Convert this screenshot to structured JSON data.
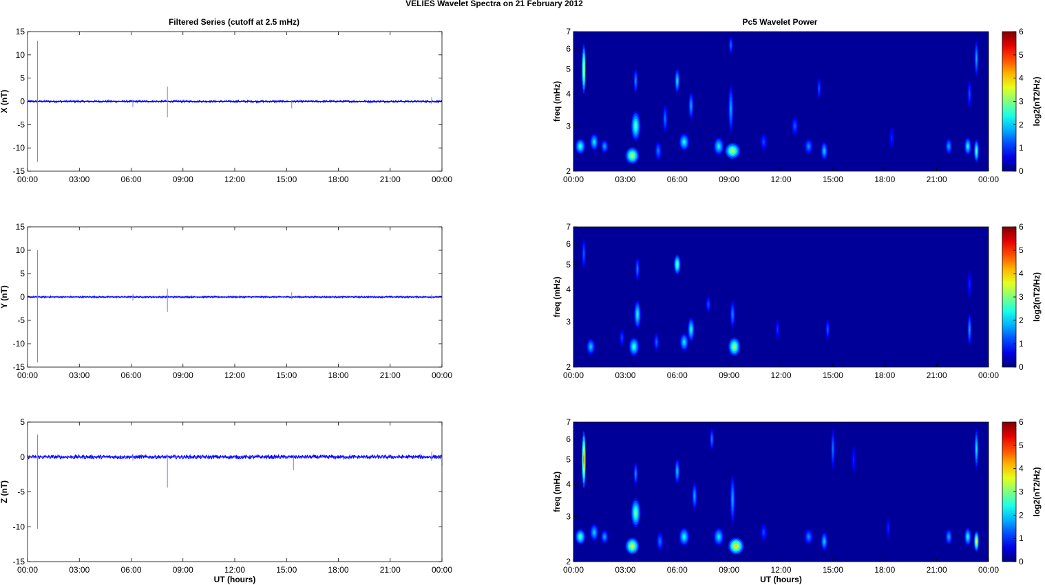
{
  "figure_title": "VELIES Wavelet Spectra on 21 February  2012",
  "left_title": "Filtered Series (cutoff at 2.5 mHz)",
  "right_title": "Pc5 Wavelet Power",
  "x_label": "UT (hours)",
  "time_ticks": [
    "00:00",
    "03:00",
    "06:00",
    "09:00",
    "12:00",
    "15:00",
    "18:00",
    "21:00",
    "00:00"
  ],
  "freq_label": "freq (mHz)",
  "colorbar_label": "log2(nT2/Hz)",
  "colorbar_ticks": [
    "0",
    "1",
    "2",
    "3",
    "4",
    "5",
    "6"
  ],
  "colors": {
    "series": "#0000ff",
    "spectrogram_background": "#00008f"
  },
  "chart_data": [
    {
      "type": "line",
      "title": "Filtered Series (cutoff at 2.5 mHz)",
      "component": "X",
      "ylabel": "X (nT)",
      "xlim_hours": [
        0,
        24
      ],
      "ylim": [
        -15,
        15
      ],
      "yticks": [
        "15",
        "10",
        "5",
        "0",
        "-5",
        "-10",
        "-15"
      ],
      "spikes": [
        {
          "t": 0.58,
          "min": -13,
          "max": 13
        },
        {
          "t": 6.1,
          "min": -1.2,
          "max": 0.4
        },
        {
          "t": 8.1,
          "min": -3.4,
          "max": 3.2
        },
        {
          "t": 15.3,
          "min": -1.5,
          "max": 0.3
        },
        {
          "t": 23.4,
          "min": -0.6,
          "max": 0.9
        }
      ],
      "noise_amplitude": 0.25
    },
    {
      "type": "line",
      "component": "Y",
      "ylabel": "Y (nT)",
      "xlim_hours": [
        0,
        24
      ],
      "ylim": [
        -15,
        15
      ],
      "yticks": [
        "15",
        "10",
        "5",
        "0",
        "-5",
        "-10",
        "-15"
      ],
      "spikes": [
        {
          "t": 0.58,
          "min": -14,
          "max": 10
        },
        {
          "t": 6.1,
          "min": -0.8,
          "max": 0.6
        },
        {
          "t": 8.1,
          "min": -3.2,
          "max": 1.8
        },
        {
          "t": 15.3,
          "min": -0.5,
          "max": 1.0
        },
        {
          "t": 23.4,
          "min": -0.4,
          "max": 0.5
        }
      ],
      "noise_amplitude": 0.2
    },
    {
      "type": "line",
      "component": "Z",
      "ylabel": "Z (nT)",
      "xlim_hours": [
        0,
        24
      ],
      "ylim": [
        -15,
        5
      ],
      "yticks": [
        "5",
        "0",
        "-5",
        "-10",
        "-15"
      ],
      "spikes": [
        {
          "t": 0.58,
          "min": -10.3,
          "max": 3.2
        },
        {
          "t": 6.1,
          "min": -0.5,
          "max": 0.4
        },
        {
          "t": 8.1,
          "min": -4.4,
          "max": 0.3
        },
        {
          "t": 15.4,
          "min": -1.9,
          "max": 0.3
        },
        {
          "t": 23.4,
          "min": -0.6,
          "max": 0.7
        },
        {
          "t": 24.0,
          "min": -1.3,
          "max": 0.2
        }
      ],
      "noise_amplitude": 0.3
    },
    {
      "type": "heatmap",
      "title": "Pc5 Wavelet Power",
      "component": "X",
      "ylabel": "freq (mHz)",
      "yscale": "log",
      "ylim": [
        2,
        7
      ],
      "yticks": [
        "2",
        "3",
        "4",
        "5",
        "6",
        "7"
      ],
      "xlim_hours": [
        0,
        24
      ],
      "clim": [
        0,
        6
      ],
      "colorbar_label": "log2(nT2/Hz)",
      "blobs": [
        {
          "t": 0.6,
          "f": 5.0,
          "dt": 0.09,
          "df": 2.2,
          "v": 4.0
        },
        {
          "t": 0.4,
          "f": 2.5,
          "dt": 0.3,
          "df": 0.35,
          "v": 2.6
        },
        {
          "t": 1.2,
          "f": 2.6,
          "dt": 0.25,
          "df": 0.4,
          "v": 2.2
        },
        {
          "t": 1.8,
          "f": 2.5,
          "dt": 0.22,
          "df": 0.3,
          "v": 1.8
        },
        {
          "t": 3.4,
          "f": 2.3,
          "dt": 0.4,
          "df": 0.35,
          "v": 3.4
        },
        {
          "t": 3.6,
          "f": 3.0,
          "dt": 0.28,
          "df": 0.8,
          "v": 2.8
        },
        {
          "t": 3.6,
          "f": 4.5,
          "dt": 0.12,
          "df": 1.0,
          "v": 1.7
        },
        {
          "t": 4.9,
          "f": 2.4,
          "dt": 0.2,
          "df": 0.4,
          "v": 1.5
        },
        {
          "t": 5.3,
          "f": 3.2,
          "dt": 0.15,
          "df": 0.8,
          "v": 1.5
        },
        {
          "t": 6.0,
          "f": 4.5,
          "dt": 0.15,
          "df": 1.0,
          "v": 2.2
        },
        {
          "t": 6.4,
          "f": 2.6,
          "dt": 0.3,
          "df": 0.4,
          "v": 2.4
        },
        {
          "t": 6.8,
          "f": 3.6,
          "dt": 0.15,
          "df": 0.9,
          "v": 1.8
        },
        {
          "t": 8.4,
          "f": 2.5,
          "dt": 0.3,
          "df": 0.4,
          "v": 2.3
        },
        {
          "t": 9.2,
          "f": 2.4,
          "dt": 0.45,
          "df": 0.35,
          "v": 3.4
        },
        {
          "t": 9.1,
          "f": 3.5,
          "dt": 0.15,
          "df": 1.5,
          "v": 1.8
        },
        {
          "t": 9.1,
          "f": 6.2,
          "dt": 0.1,
          "df": 1.0,
          "v": 1.5
        },
        {
          "t": 11.0,
          "f": 2.6,
          "dt": 0.2,
          "df": 0.4,
          "v": 1.2
        },
        {
          "t": 12.8,
          "f": 3.0,
          "dt": 0.2,
          "df": 0.5,
          "v": 1.3
        },
        {
          "t": 13.6,
          "f": 2.5,
          "dt": 0.25,
          "df": 0.35,
          "v": 1.6
        },
        {
          "t": 14.5,
          "f": 2.4,
          "dt": 0.2,
          "df": 0.4,
          "v": 2.0
        },
        {
          "t": 14.2,
          "f": 4.2,
          "dt": 0.12,
          "df": 0.8,
          "v": 1.3
        },
        {
          "t": 18.4,
          "f": 2.7,
          "dt": 0.15,
          "df": 0.5,
          "v": 1.0
        },
        {
          "t": 21.7,
          "f": 2.5,
          "dt": 0.2,
          "df": 0.35,
          "v": 1.8
        },
        {
          "t": 22.8,
          "f": 2.5,
          "dt": 0.2,
          "df": 0.4,
          "v": 2.4
        },
        {
          "t": 22.9,
          "f": 4.0,
          "dt": 0.1,
          "df": 1.0,
          "v": 1.3
        },
        {
          "t": 23.3,
          "f": 2.4,
          "dt": 0.15,
          "df": 0.5,
          "v": 2.8
        },
        {
          "t": 23.3,
          "f": 5.5,
          "dt": 0.08,
          "df": 1.8,
          "v": 1.8
        }
      ]
    },
    {
      "type": "heatmap",
      "component": "Y",
      "ylabel": "freq (mHz)",
      "yscale": "log",
      "ylim": [
        2,
        7
      ],
      "yticks": [
        "2",
        "3",
        "4",
        "5",
        "6",
        "7"
      ],
      "xlim_hours": [
        0,
        24
      ],
      "clim": [
        0,
        6
      ],
      "colorbar_label": "log2(nT2/Hz)",
      "blobs": [
        {
          "t": 0.6,
          "f": 5.5,
          "dt": 0.07,
          "df": 1.5,
          "v": 1.4
        },
        {
          "t": 1.0,
          "f": 2.4,
          "dt": 0.25,
          "df": 0.35,
          "v": 2.0
        },
        {
          "t": 2.8,
          "f": 2.6,
          "dt": 0.15,
          "df": 0.4,
          "v": 1.2
        },
        {
          "t": 3.5,
          "f": 2.4,
          "dt": 0.3,
          "df": 0.4,
          "v": 2.6
        },
        {
          "t": 3.7,
          "f": 3.2,
          "dt": 0.2,
          "df": 0.8,
          "v": 2.4
        },
        {
          "t": 3.7,
          "f": 4.8,
          "dt": 0.1,
          "df": 1.0,
          "v": 1.6
        },
        {
          "t": 4.8,
          "f": 2.5,
          "dt": 0.15,
          "df": 0.4,
          "v": 1.4
        },
        {
          "t": 6.0,
          "f": 5.0,
          "dt": 0.2,
          "df": 0.9,
          "v": 3.0
        },
        {
          "t": 6.4,
          "f": 2.5,
          "dt": 0.25,
          "df": 0.4,
          "v": 2.2
        },
        {
          "t": 6.8,
          "f": 2.8,
          "dt": 0.2,
          "df": 0.6,
          "v": 2.4
        },
        {
          "t": 7.8,
          "f": 3.5,
          "dt": 0.15,
          "df": 0.5,
          "v": 1.3
        },
        {
          "t": 9.3,
          "f": 2.4,
          "dt": 0.35,
          "df": 0.4,
          "v": 3.3
        },
        {
          "t": 9.2,
          "f": 3.2,
          "dt": 0.15,
          "df": 0.8,
          "v": 1.6
        },
        {
          "t": 11.8,
          "f": 2.8,
          "dt": 0.12,
          "df": 0.5,
          "v": 1.1
        },
        {
          "t": 14.7,
          "f": 2.8,
          "dt": 0.12,
          "df": 0.5,
          "v": 1.4
        },
        {
          "t": 22.9,
          "f": 2.8,
          "dt": 0.12,
          "df": 0.8,
          "v": 1.8
        },
        {
          "t": 22.9,
          "f": 4.2,
          "dt": 0.1,
          "df": 1.0,
          "v": 1.0
        }
      ]
    },
    {
      "type": "heatmap",
      "component": "Z",
      "ylabel": "freq (mHz)",
      "yscale": "log",
      "ylim": [
        2,
        7
      ],
      "yticks": [
        "2",
        "3",
        "4",
        "5",
        "6",
        "7"
      ],
      "xlim_hours": [
        0,
        24
      ],
      "clim": [
        0,
        6
      ],
      "colorbar_label": "log2(nT2/Hz)",
      "blobs": [
        {
          "t": 0.6,
          "f": 5.0,
          "dt": 0.09,
          "df": 2.5,
          "v": 5.0
        },
        {
          "t": 0.4,
          "f": 2.5,
          "dt": 0.3,
          "df": 0.35,
          "v": 2.8
        },
        {
          "t": 1.2,
          "f": 2.6,
          "dt": 0.25,
          "df": 0.4,
          "v": 2.0
        },
        {
          "t": 1.8,
          "f": 2.5,
          "dt": 0.22,
          "df": 0.3,
          "v": 1.8
        },
        {
          "t": 3.4,
          "f": 2.3,
          "dt": 0.4,
          "df": 0.35,
          "v": 3.6
        },
        {
          "t": 3.6,
          "f": 3.1,
          "dt": 0.28,
          "df": 0.8,
          "v": 3.0
        },
        {
          "t": 3.6,
          "f": 4.4,
          "dt": 0.12,
          "df": 0.9,
          "v": 1.7
        },
        {
          "t": 5.0,
          "f": 2.4,
          "dt": 0.2,
          "df": 0.4,
          "v": 1.5
        },
        {
          "t": 6.0,
          "f": 4.5,
          "dt": 0.15,
          "df": 1.0,
          "v": 2.0
        },
        {
          "t": 6.4,
          "f": 2.5,
          "dt": 0.3,
          "df": 0.4,
          "v": 2.4
        },
        {
          "t": 7.0,
          "f": 3.6,
          "dt": 0.15,
          "df": 0.9,
          "v": 1.8
        },
        {
          "t": 8.4,
          "f": 2.5,
          "dt": 0.3,
          "df": 0.4,
          "v": 2.2
        },
        {
          "t": 8.0,
          "f": 6.0,
          "dt": 0.08,
          "df": 1.2,
          "v": 1.6
        },
        {
          "t": 9.4,
          "f": 2.3,
          "dt": 0.45,
          "df": 0.35,
          "v": 4.0
        },
        {
          "t": 9.2,
          "f": 3.5,
          "dt": 0.15,
          "df": 1.5,
          "v": 1.8
        },
        {
          "t": 11.0,
          "f": 2.6,
          "dt": 0.2,
          "df": 0.4,
          "v": 1.2
        },
        {
          "t": 13.6,
          "f": 2.5,
          "dt": 0.25,
          "df": 0.35,
          "v": 1.6
        },
        {
          "t": 14.5,
          "f": 2.4,
          "dt": 0.2,
          "df": 0.4,
          "v": 2.0
        },
        {
          "t": 15.0,
          "f": 5.5,
          "dt": 0.07,
          "df": 2.0,
          "v": 1.5
        },
        {
          "t": 16.2,
          "f": 5.0,
          "dt": 0.06,
          "df": 1.2,
          "v": 1.0
        },
        {
          "t": 18.2,
          "f": 2.7,
          "dt": 0.12,
          "df": 0.5,
          "v": 1.0
        },
        {
          "t": 21.7,
          "f": 2.5,
          "dt": 0.2,
          "df": 0.35,
          "v": 1.8
        },
        {
          "t": 22.8,
          "f": 2.5,
          "dt": 0.2,
          "df": 0.4,
          "v": 2.4
        },
        {
          "t": 23.3,
          "f": 2.4,
          "dt": 0.15,
          "df": 0.45,
          "v": 3.6
        },
        {
          "t": 23.3,
          "f": 5.5,
          "dt": 0.07,
          "df": 2.0,
          "v": 2.2
        }
      ]
    }
  ]
}
